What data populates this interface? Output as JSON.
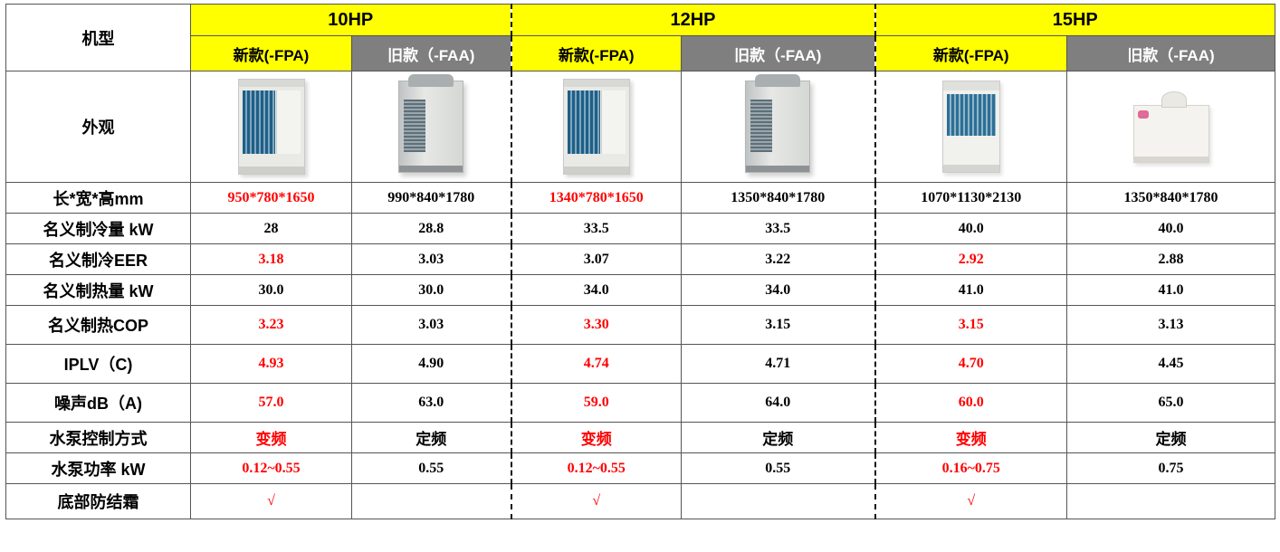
{
  "header": {
    "model_label": "机型",
    "groups": [
      {
        "hp": "10HP",
        "new_label": "新款(-FPA)",
        "old_label": "旧款（-FAA)"
      },
      {
        "hp": "12HP",
        "new_label": "新款(-FPA)",
        "old_label": "旧款（-FAA)"
      },
      {
        "hp": "15HP",
        "new_label": "新款(-FPA)",
        "old_label": "旧款（-FAA)"
      }
    ]
  },
  "appearance_label": "外观",
  "unit_images": [
    "unit-a-icon",
    "unit-b-icon",
    "unit-a-icon",
    "unit-b-icon",
    "unit-c-icon",
    "unit-d-icon"
  ],
  "highlight_color": "#ff0000",
  "header_yellow": "#ffff00",
  "header_gray": "#7f7f7f",
  "rows": [
    {
      "label": "长*宽*高mm",
      "values": [
        "950*780*1650",
        "990*840*1780",
        "1340*780*1650",
        "1350*840*1780",
        "1070*1130*2130",
        "1350*840*1780"
      ],
      "red": [
        true,
        false,
        true,
        false,
        false,
        false
      ]
    },
    {
      "label": "名义制冷量 kW",
      "values": [
        "28",
        "28.8",
        "33.5",
        "33.5",
        "40.0",
        "40.0"
      ],
      "red": [
        false,
        false,
        false,
        false,
        false,
        false
      ]
    },
    {
      "label": "名义制冷EER",
      "values": [
        "3.18",
        "3.03",
        "3.07",
        "3.22",
        "2.92",
        "2.88"
      ],
      "red": [
        true,
        false,
        false,
        false,
        true,
        false
      ]
    },
    {
      "label": "名义制热量 kW",
      "values": [
        "30.0",
        "30.0",
        "34.0",
        "34.0",
        "41.0",
        "41.0"
      ],
      "red": [
        false,
        false,
        false,
        false,
        false,
        false
      ]
    },
    {
      "label": "名义制热COP",
      "values": [
        "3.23",
        "3.03",
        "3.30",
        "3.15",
        "3.15",
        "3.13"
      ],
      "red": [
        true,
        false,
        true,
        false,
        true,
        false
      ]
    },
    {
      "label": "IPLV（C)",
      "values": [
        "4.93",
        "4.90",
        "4.74",
        "4.71",
        "4.70",
        "4.45"
      ],
      "red": [
        true,
        false,
        true,
        false,
        true,
        false
      ]
    },
    {
      "label": "噪声dB（A)",
      "values": [
        "57.0",
        "63.0",
        "59.0",
        "64.0",
        "60.0",
        "65.0"
      ],
      "red": [
        true,
        false,
        true,
        false,
        true,
        false
      ]
    },
    {
      "label": "水泵控制方式",
      "values": [
        "变频",
        "定频",
        "变频",
        "定频",
        "变频",
        "定频"
      ],
      "red": [
        true,
        false,
        true,
        false,
        true,
        false
      ]
    },
    {
      "label": "水泵功率 kW",
      "values": [
        "0.12~0.55",
        "0.55",
        "0.12~0.55",
        "0.55",
        "0.16~0.75",
        "0.75"
      ],
      "red": [
        true,
        false,
        true,
        false,
        true,
        false
      ]
    },
    {
      "label": "底部防结霜",
      "values": [
        "√",
        "",
        "√",
        "",
        "√",
        ""
      ],
      "red": [
        true,
        false,
        true,
        false,
        true,
        false
      ]
    }
  ]
}
